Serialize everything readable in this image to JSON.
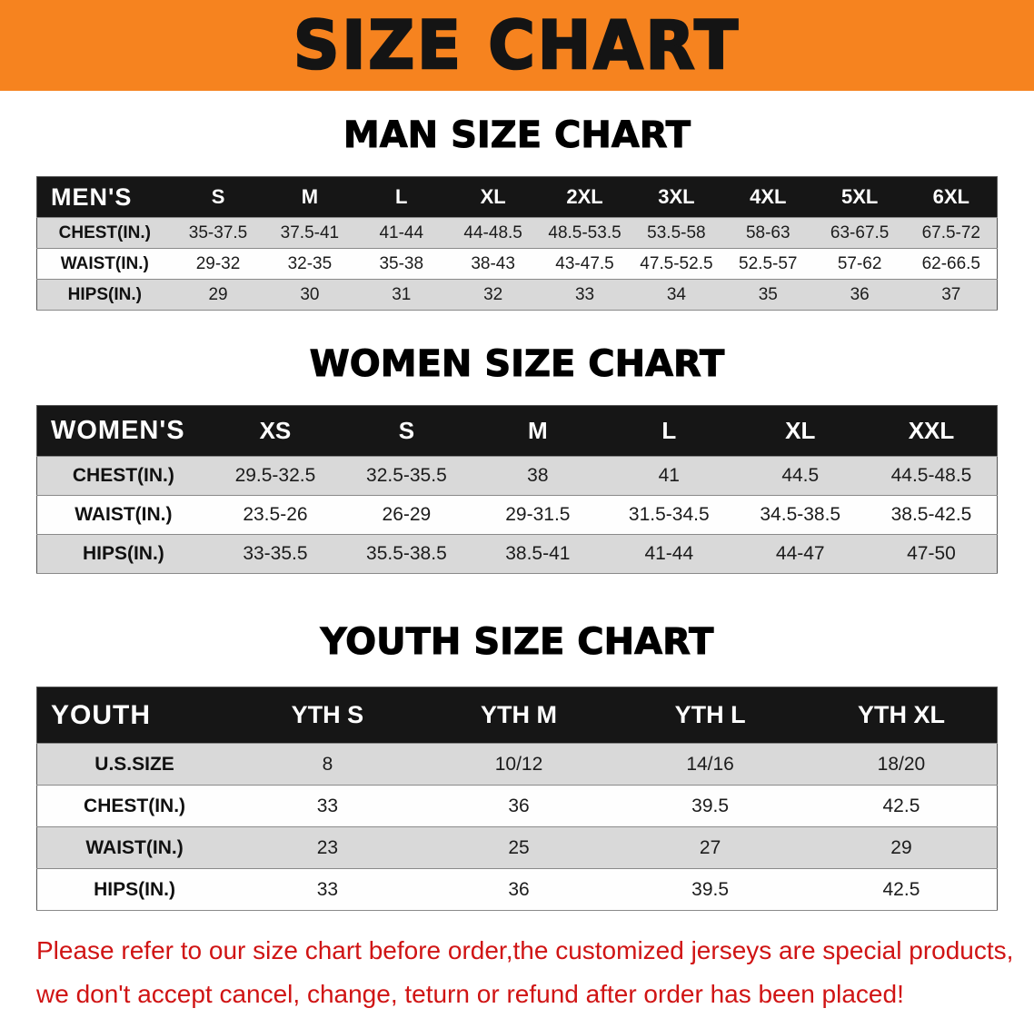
{
  "banner": {
    "title": "SIZE CHART",
    "bg_color": "#f6831f",
    "text_color": "#141414"
  },
  "colors": {
    "table_header_bg": "#161616",
    "table_header_text": "#ffffff",
    "row_shade": "#d9d9d9",
    "row_plain": "#fefefe",
    "disclaimer_red": "#d01414"
  },
  "tables": [
    {
      "id": "men",
      "heading": "MAN SIZE CHART",
      "columns": [
        "MEN'S",
        "S",
        "M",
        "L",
        "XL",
        "2XL",
        "3XL",
        "4XL",
        "5XL",
        "6XL"
      ],
      "rows": [
        {
          "label": "CHEST(IN.)",
          "values": [
            "35-37.5",
            "37.5-41",
            "41-44",
            "44-48.5",
            "48.5-53.5",
            "53.5-58",
            "58-63",
            "63-67.5",
            "67.5-72"
          ]
        },
        {
          "label": "WAIST(IN.)",
          "values": [
            "29-32",
            "32-35",
            "35-38",
            "38-43",
            "43-47.5",
            "47.5-52.5",
            "52.5-57",
            "57-62",
            "62-66.5"
          ]
        },
        {
          "label": "HIPS(IN.)",
          "values": [
            "29",
            "30",
            "31",
            "32",
            "33",
            "34",
            "35",
            "36",
            "37"
          ]
        }
      ]
    },
    {
      "id": "women",
      "heading": "WOMEN SIZE CHART",
      "columns": [
        "WOMEN'S",
        "XS",
        "S",
        "M",
        "L",
        "XL",
        "XXL"
      ],
      "rows": [
        {
          "label": "CHEST(IN.)",
          "values": [
            "29.5-32.5",
            "32.5-35.5",
            "38",
            "41",
            "44.5",
            "44.5-48.5"
          ]
        },
        {
          "label": "WAIST(IN.)",
          "values": [
            "23.5-26",
            "26-29",
            "29-31.5",
            "31.5-34.5",
            "34.5-38.5",
            "38.5-42.5"
          ]
        },
        {
          "label": "HIPS(IN.)",
          "values": [
            "33-35.5",
            "35.5-38.5",
            "38.5-41",
            "41-44",
            "44-47",
            "47-50"
          ]
        }
      ]
    },
    {
      "id": "youth",
      "heading": "YOUTH SIZE CHART",
      "columns": [
        "YOUTH",
        "YTH S",
        "YTH M",
        "YTH L",
        "YTH XL"
      ],
      "rows": [
        {
          "label": "U.S.SIZE",
          "values": [
            "8",
            "10/12",
            "14/16",
            "18/20"
          ]
        },
        {
          "label": "CHEST(IN.)",
          "values": [
            "33",
            "36",
            "39.5",
            "42.5"
          ]
        },
        {
          "label": "WAIST(IN.)",
          "values": [
            "23",
            "25",
            "27",
            "29"
          ]
        },
        {
          "label": "HIPS(IN.)",
          "values": [
            "33",
            "36",
            "39.5",
            "42.5"
          ]
        }
      ]
    }
  ],
  "disclaimer": {
    "lines": [
      "Please refer to our size chart before order,the customized jerseys are special products,",
      "we don't accept cancel, change, teturn or refund after order has been placed!"
    ]
  }
}
